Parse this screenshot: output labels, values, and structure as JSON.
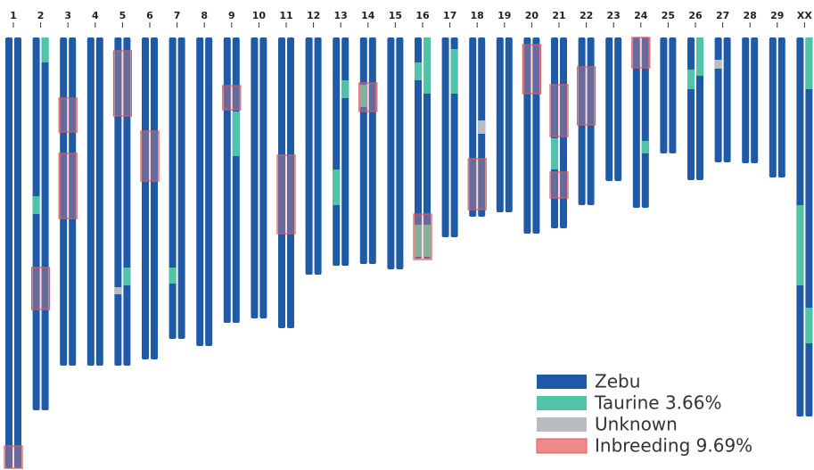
{
  "chromosomes": [
    "1",
    "2",
    "3",
    "4",
    "5",
    "6",
    "7",
    "8",
    "9",
    "10",
    "11",
    "12",
    "13",
    "14",
    "15",
    "16",
    "17",
    "18",
    "19",
    "20",
    "21",
    "22",
    "23",
    "24",
    "25",
    "26",
    "27",
    "28",
    "29",
    "XX"
  ],
  "legend": [
    {
      "label": "Zebu"
    },
    {
      "label": "Taurine 3.66%"
    },
    {
      "label": "Unknown"
    },
    {
      "label": "Inbreeding 9.69%"
    }
  ]
}
